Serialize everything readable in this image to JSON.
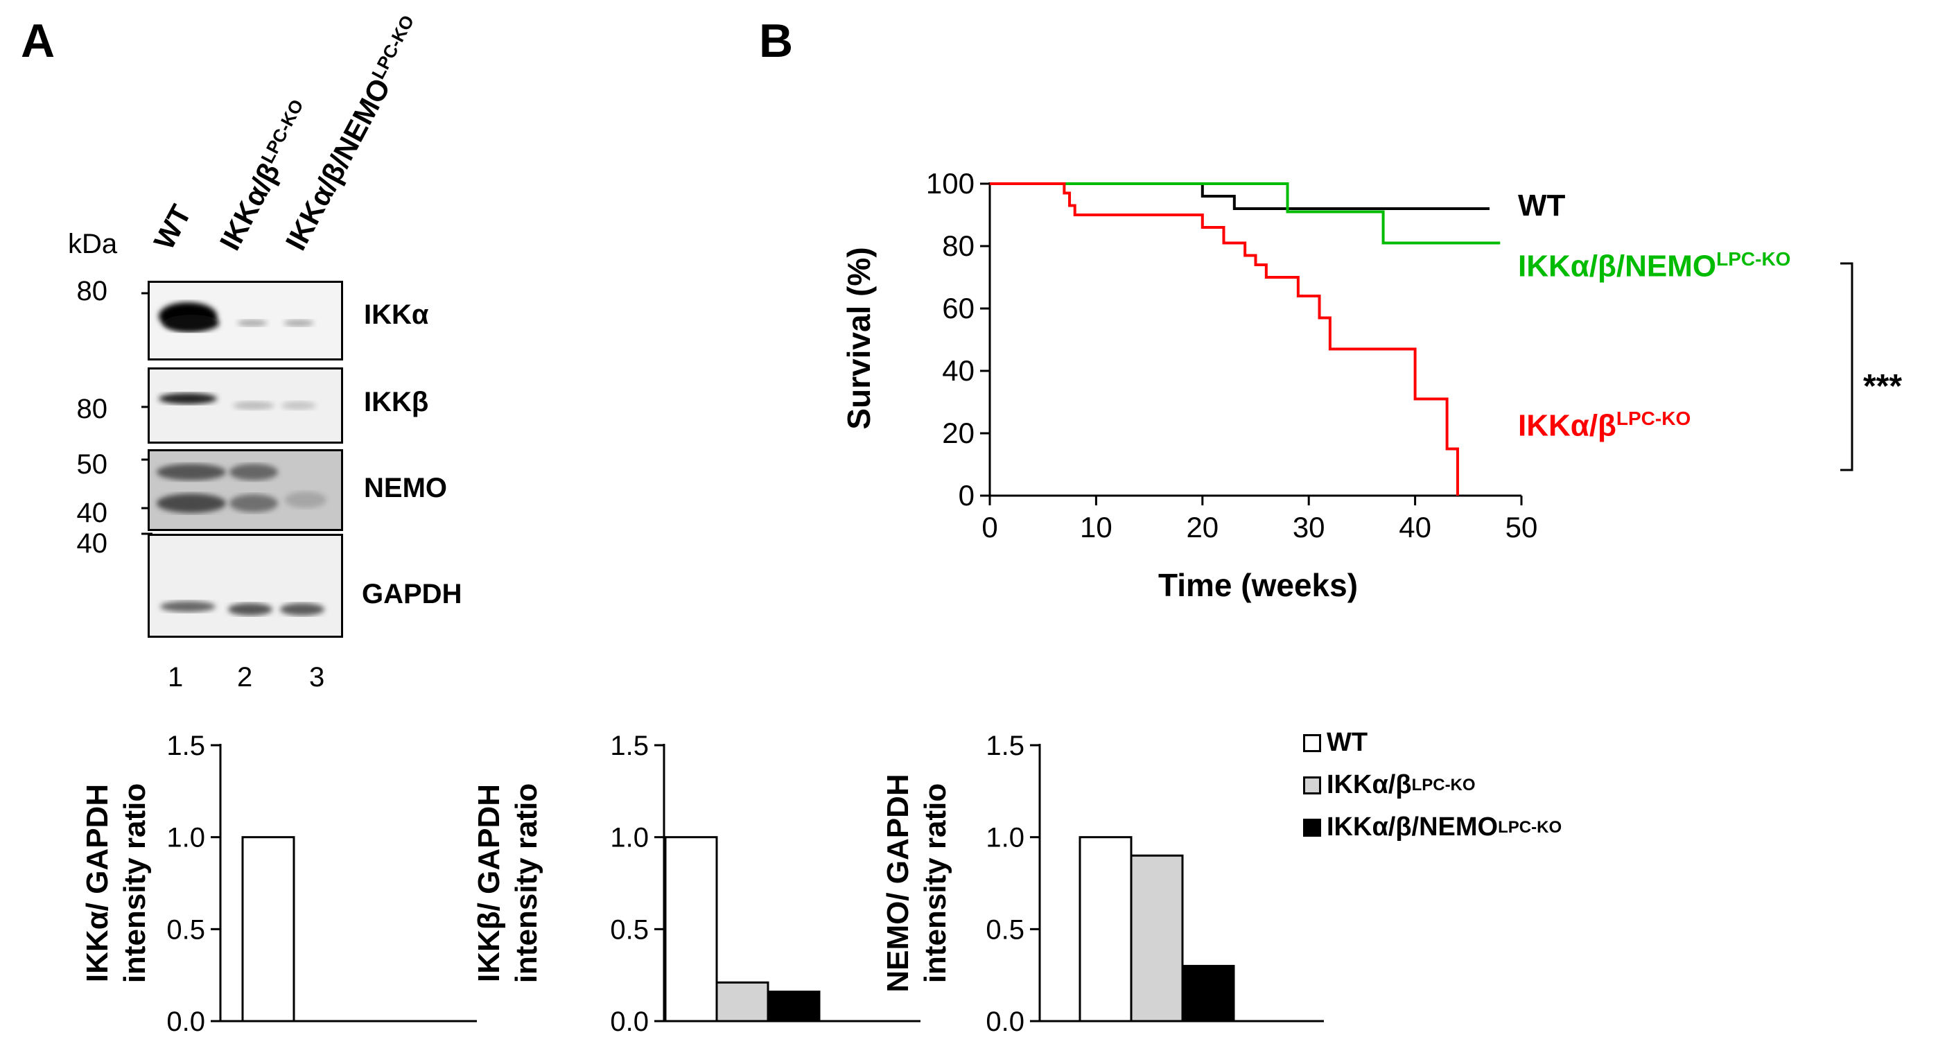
{
  "panelA": {
    "letter": "A",
    "lanes": [
      {
        "head": "WT",
        "sup": "",
        "number": "1"
      },
      {
        "head": "IKKα/β",
        "sup": "LPC-KO",
        "number": "2"
      },
      {
        "head": "IKKα/β/NEMO",
        "sup": "LPC-KO",
        "number": "3"
      }
    ],
    "kda_label": "kDa",
    "markers": [
      "80",
      "80",
      "50",
      "40",
      "40"
    ],
    "blots": [
      {
        "label": "IKKα"
      },
      {
        "label": "IKKβ"
      },
      {
        "label": "NEMO"
      },
      {
        "label": "GAPDH"
      }
    ]
  },
  "panelB": {
    "letter": "B",
    "significance": "***",
    "curve_labels": {
      "wt": "WT",
      "nemo": "IKKα/β/NEMO",
      "nemo_sup": "LPC-KO",
      "ab": "IKKα/β",
      "ab_sup": "LPC-KO"
    }
  },
  "legend": {
    "items": [
      {
        "label": "WT",
        "sup": "",
        "color": "#ffffff"
      },
      {
        "label": "IKKα/β",
        "sup": "LPC-KO",
        "color": "#d3d3d3"
      },
      {
        "label": "IKKα/β/NEMO",
        "sup": "LPC-KO",
        "color": "#000000"
      }
    ]
  },
  "chart_data": [
    {
      "type": "line",
      "title": "",
      "xlabel": "Time (weeks)",
      "ylabel": "Survival (%)",
      "xlim": [
        0,
        50
      ],
      "ylim": [
        0,
        100
      ],
      "xticks": [
        "0",
        "10",
        "20",
        "30",
        "40",
        "50"
      ],
      "yticks": [
        "0",
        "20",
        "40",
        "60",
        "80",
        "100"
      ],
      "series": [
        {
          "name": "WT",
          "color": "#000000",
          "x": [
            0,
            20,
            20,
            23,
            23,
            47
          ],
          "y": [
            100,
            100,
            96,
            96,
            92,
            92
          ]
        },
        {
          "name": "IKKα/β/NEMO LPC-KO",
          "color": "#00bb00",
          "x": [
            0,
            28,
            28,
            37,
            37,
            48
          ],
          "y": [
            100,
            100,
            91,
            91,
            81,
            81
          ]
        },
        {
          "name": "IKKα/β LPC-KO",
          "color": "#ff0000",
          "x": [
            0,
            7,
            7,
            7.5,
            7.5,
            8,
            8,
            20,
            20,
            22,
            22,
            24,
            24,
            25,
            25,
            26,
            26,
            29,
            29,
            31,
            31,
            32,
            32,
            40,
            40,
            43,
            43,
            44,
            44
          ],
          "y": [
            100,
            100,
            97,
            97,
            93,
            93,
            90,
            90,
            86,
            86,
            81,
            81,
            77,
            77,
            74,
            74,
            70,
            70,
            64,
            64,
            57,
            57,
            47,
            47,
            31,
            31,
            15,
            15,
            0
          ]
        }
      ]
    },
    {
      "type": "bar",
      "ylabel": "IKKα/ GAPDH intensity ratio",
      "ylabel_lines": [
        "IKKα/ GAPDH",
        "intensity ratio"
      ],
      "categories": [
        "WT",
        "IKKα/β LPC-KO",
        "IKKα/β/NEMO LPC-KO"
      ],
      "values": [
        1.0,
        0.0,
        0.0
      ],
      "colors": [
        "#ffffff",
        "#d3d3d3",
        "#000000"
      ],
      "ylim": [
        0,
        1.5
      ],
      "yticks": [
        "0.0",
        "0.5",
        "1.0",
        "1.5"
      ]
    },
    {
      "type": "bar",
      "ylabel": "IKKβ/ GAPDH intensity ratio",
      "ylabel_lines": [
        "IKKβ/ GAPDH",
        "intensity ratio"
      ],
      "categories": [
        "WT",
        "IKKα/β LPC-KO",
        "IKKα/β/NEMO LPC-KO"
      ],
      "values": [
        1.0,
        0.21,
        0.16
      ],
      "colors": [
        "#ffffff",
        "#d3d3d3",
        "#000000"
      ],
      "ylim": [
        0,
        1.5
      ],
      "yticks": [
        "0.0",
        "0.5",
        "1.0",
        "1.5"
      ]
    },
    {
      "type": "bar",
      "ylabel": "NEMO/ GAPDH intensity ratio",
      "ylabel_lines": [
        "NEMO/ GAPDH",
        "intensity ratio"
      ],
      "categories": [
        "WT",
        "IKKα/β LPC-KO",
        "IKKα/β/NEMO LPC-KO"
      ],
      "values": [
        1.0,
        0.9,
        0.3
      ],
      "colors": [
        "#ffffff",
        "#d3d3d3",
        "#000000"
      ],
      "ylim": [
        0,
        1.5
      ],
      "yticks": [
        "0.0",
        "0.5",
        "1.0",
        "1.5"
      ]
    }
  ]
}
